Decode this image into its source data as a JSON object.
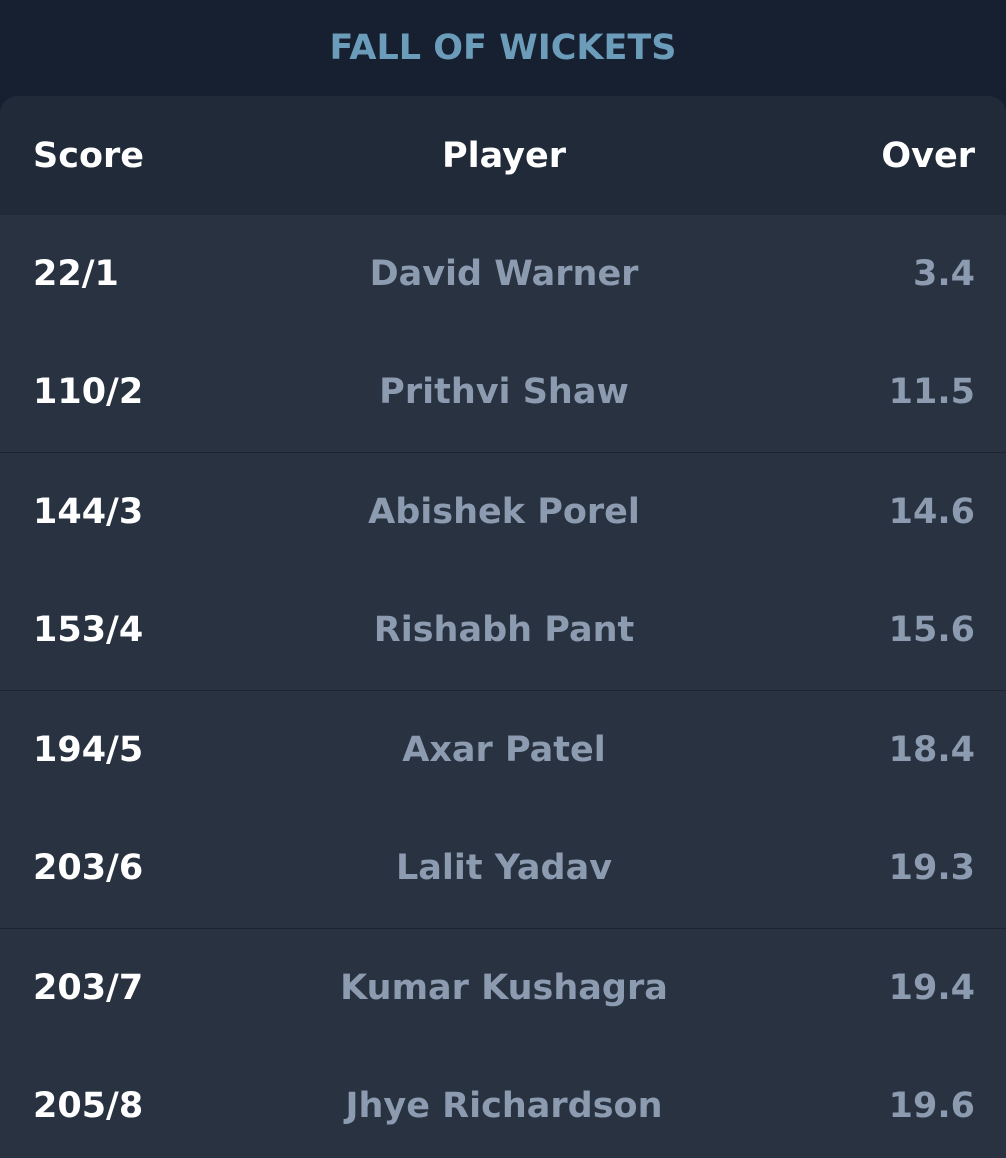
{
  "title": "FALL OF WICKETS",
  "columns": {
    "score": "Score",
    "player": "Player",
    "over": "Over"
  },
  "wickets": [
    {
      "score": "22/1",
      "player": "David Warner",
      "over": "3.4"
    },
    {
      "score": "110/2",
      "player": "Prithvi Shaw",
      "over": "11.5"
    },
    {
      "score": "144/3",
      "player": "Abishek Porel",
      "over": "14.6"
    },
    {
      "score": "153/4",
      "player": "Rishabh Pant",
      "over": "15.6"
    },
    {
      "score": "194/5",
      "player": "Axar Patel",
      "over": "18.4"
    },
    {
      "score": "203/6",
      "player": "Lalit Yadav",
      "over": "19.3"
    },
    {
      "score": "203/7",
      "player": "Kumar Kushagra",
      "over": "19.4"
    },
    {
      "score": "205/8",
      "player": "Jhye Richardson",
      "over": "19.6"
    }
  ],
  "colors": {
    "title": "#6b9dbb",
    "background": "#141b27",
    "card": "#283241",
    "header": "#212a38",
    "score_text": "#ffffff",
    "muted_text": "#8c9bb0"
  }
}
